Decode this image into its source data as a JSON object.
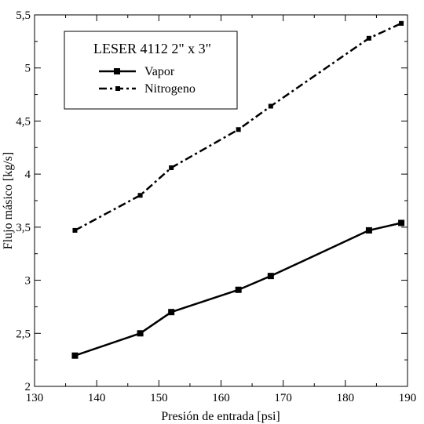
{
  "chart_data": {
    "type": "line",
    "title": "",
    "xlabel": "Presión de entrada [psi]",
    "ylabel": "Flujo másico [kg/s]",
    "xlim": [
      130,
      190
    ],
    "ylim": [
      2,
      5.5
    ],
    "xticks": [
      130,
      140,
      150,
      160,
      170,
      180,
      190
    ],
    "yticks": [
      2,
      2.5,
      3,
      3.5,
      4,
      4.5,
      5,
      5.5
    ],
    "xtick_labels": [
      "130",
      "140",
      "150",
      "160",
      "170",
      "180",
      "190"
    ],
    "ytick_labels": [
      "2",
      "2,5",
      "3",
      "3,5",
      "4",
      "4,5",
      "5",
      "5,5"
    ],
    "grid": false,
    "legend": {
      "title": "LESER 4112 2\" x 3\"",
      "placement": "top-left"
    },
    "series": [
      {
        "name": "Vapor",
        "line_style": "solid",
        "marker": "square",
        "x": [
          136.5,
          147,
          152,
          162.8,
          168,
          183.8,
          189
        ],
        "y": [
          2.29,
          2.5,
          2.7,
          2.91,
          3.04,
          3.47,
          3.54
        ]
      },
      {
        "name": "Nitrogeno",
        "line_style": "dash-dot",
        "marker": "square",
        "x": [
          136.5,
          147,
          152,
          162.8,
          168,
          183.8,
          189
        ],
        "y": [
          3.47,
          3.8,
          4.06,
          4.42,
          4.64,
          5.28,
          5.42
        ]
      }
    ]
  }
}
